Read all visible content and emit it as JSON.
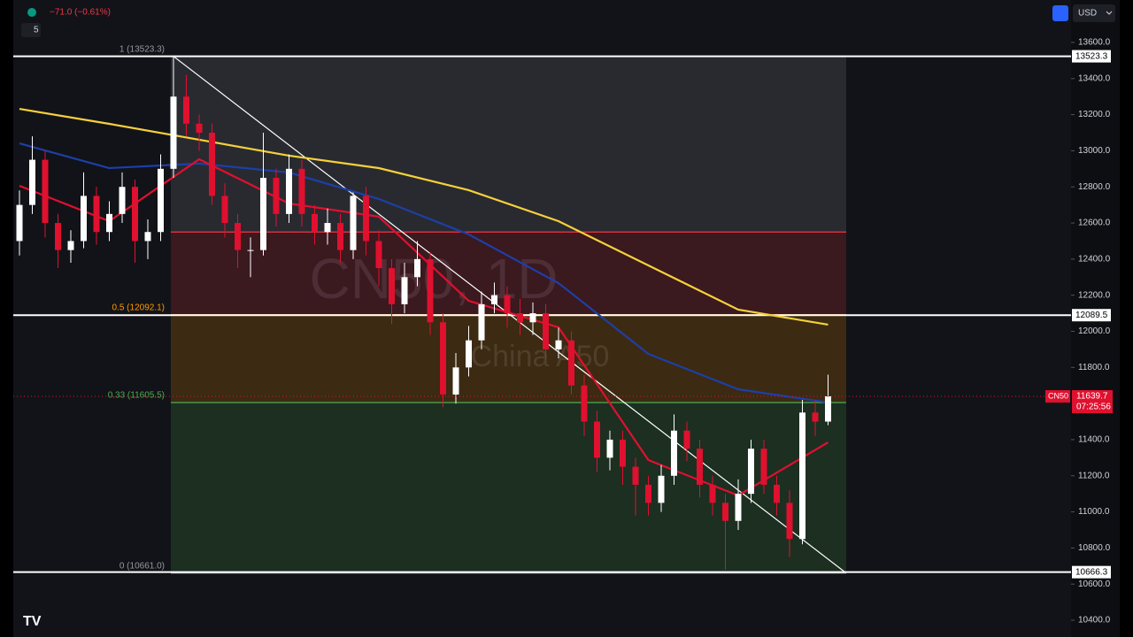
{
  "chart_data": {
    "type": "candlestick",
    "change_text": "−71.0 (−0.61%)",
    "interval": "5",
    "currency": "USD",
    "watermark": "CN50, 1D",
    "watermark_sub": "China A50",
    "ylim": [
      10307,
      13835
    ],
    "yticks": [
      {
        "value": 13600,
        "label": "13600.0"
      },
      {
        "value": 13400,
        "label": "13400.0"
      },
      {
        "value": 13200,
        "label": "13200.0"
      },
      {
        "value": 13000,
        "label": "13000.0"
      },
      {
        "value": 12800,
        "label": "12800.0"
      },
      {
        "value": 12600,
        "label": "12600.0"
      },
      {
        "value": 12400,
        "label": "12400.0"
      },
      {
        "value": 12200,
        "label": "12200.0"
      },
      {
        "value": 12000,
        "label": "12000.0"
      },
      {
        "value": 11800,
        "label": "11800.0"
      },
      {
        "value": 11400,
        "label": "11400.0"
      },
      {
        "value": 11200,
        "label": "11200.0"
      },
      {
        "value": 11000,
        "label": "11000.0"
      },
      {
        "value": 10800,
        "label": "10800.0"
      },
      {
        "value": 10600,
        "label": "10600.0"
      },
      {
        "value": 10400,
        "label": "10400.0"
      }
    ],
    "candles": {
      "up_color": "#ffffff",
      "down_color": "#e0102f",
      "open": [
        12500,
        12700,
        12950,
        12600,
        12450,
        12500,
        12750,
        12550,
        12650,
        12800,
        12500,
        12550,
        12900,
        13300,
        13150,
        13100,
        12750,
        12600,
        12450,
        12450,
        12850,
        12650,
        12900,
        12650,
        12550,
        12600,
        12450,
        12750,
        12500,
        12350,
        12150,
        12300,
        12400,
        12050,
        11650,
        11800,
        11950,
        12150,
        12200,
        12100,
        12050,
        12100,
        11900,
        11950,
        11700,
        11500,
        11300,
        11400,
        11250,
        11150,
        11050,
        11200,
        11450,
        11350,
        11150,
        11050,
        10950,
        11100,
        11350,
        11150,
        11050,
        10850,
        11550,
        11500
      ],
      "high": [
        12780,
        13080,
        13000,
        12650,
        12560,
        12880,
        12800,
        12720,
        12880,
        12840,
        12620,
        12980,
        13523,
        13420,
        13200,
        13150,
        12820,
        12650,
        12520,
        13100,
        12900,
        12980,
        12950,
        12700,
        12680,
        12650,
        12770,
        12800,
        12560,
        12400,
        12380,
        12500,
        12440,
        12100,
        11880,
        12030,
        12220,
        12270,
        12250,
        12180,
        12160,
        12150,
        12020,
        12000,
        11760,
        11560,
        11450,
        11450,
        11300,
        11200,
        11260,
        11540,
        11500,
        11400,
        11200,
        11100,
        11180,
        11400,
        11400,
        11200,
        11120,
        11620,
        11620,
        11760
      ],
      "low": [
        12420,
        12650,
        12520,
        12350,
        12380,
        12460,
        12480,
        12500,
        12600,
        12380,
        12400,
        12500,
        12850,
        13080,
        13000,
        12700,
        12520,
        12350,
        12300,
        12420,
        12580,
        12600,
        12580,
        12480,
        12480,
        12380,
        12400,
        12420,
        12250,
        12040,
        12100,
        12250,
        11980,
        11580,
        11600,
        11750,
        11900,
        12100,
        12020,
        11980,
        11980,
        11850,
        11850,
        11650,
        11420,
        11220,
        11230,
        11150,
        10980,
        10980,
        11000,
        11150,
        11280,
        11080,
        10980,
        10680,
        10900,
        11050,
        11100,
        10980,
        10750,
        10820,
        11420,
        11480
      ],
      "close": [
        12700,
        12950,
        12600,
        12450,
        12500,
        12750,
        12550,
        12650,
        12800,
        12500,
        12550,
        12900,
        13300,
        13150,
        13100,
        12750,
        12600,
        12450,
        12450,
        12850,
        12650,
        12900,
        12650,
        12550,
        12600,
        12450,
        12750,
        12500,
        12350,
        12150,
        12300,
        12400,
        12050,
        11650,
        11800,
        11950,
        12150,
        12200,
        12100,
        12050,
        12100,
        11900,
        11950,
        11700,
        11500,
        11300,
        11400,
        11250,
        11150,
        11050,
        11200,
        11450,
        11350,
        11150,
        11050,
        10950,
        11100,
        11350,
        11150,
        11050,
        10850,
        11550,
        11500,
        11640
      ]
    },
    "lines": [
      {
        "color": "#f5d13a",
        "x": [
          0,
          7,
          14,
          21,
          28,
          35,
          42,
          49,
          56,
          63
        ],
        "values": [
          13232,
          13149,
          13061,
          12973,
          12904,
          12782,
          12610,
          12365,
          12120,
          12037
        ]
      },
      {
        "color": "#1d3fa8",
        "x": [
          0,
          7,
          14,
          21,
          28,
          35,
          42,
          49,
          56,
          63
        ],
        "values": [
          13041,
          12904,
          12929,
          12880,
          12733,
          12537,
          12267,
          11875,
          11679,
          11606
        ]
      },
      {
        "color": "#e0102f",
        "x": [
          0,
          7,
          14,
          21,
          28,
          35,
          42,
          49,
          56,
          63
        ],
        "values": [
          12806,
          12610,
          12953,
          12708,
          12635,
          12169,
          12022,
          11287,
          11091,
          11385
        ]
      }
    ],
    "fib_levels": [
      {
        "value": 13523.3,
        "label": "1 (13523.3)",
        "color": "#9598a1"
      },
      {
        "value": 12550,
        "color": "#f23645"
      },
      {
        "value": 12092.1,
        "label": "0.5 (12092.1)",
        "color": "#ff9800"
      },
      {
        "value": 11605.5,
        "label": "0.33 (11605.5)",
        "color": "#4caf50"
      },
      {
        "value": 10661.0,
        "label": "0 (10661.0)",
        "color": "#9598a1"
      }
    ],
    "price_lines": [
      13523.3,
      12089.5,
      10666.3
    ],
    "current": {
      "symbol": "CN50",
      "value": 11639.7,
      "countdown": "07:25:56"
    }
  }
}
